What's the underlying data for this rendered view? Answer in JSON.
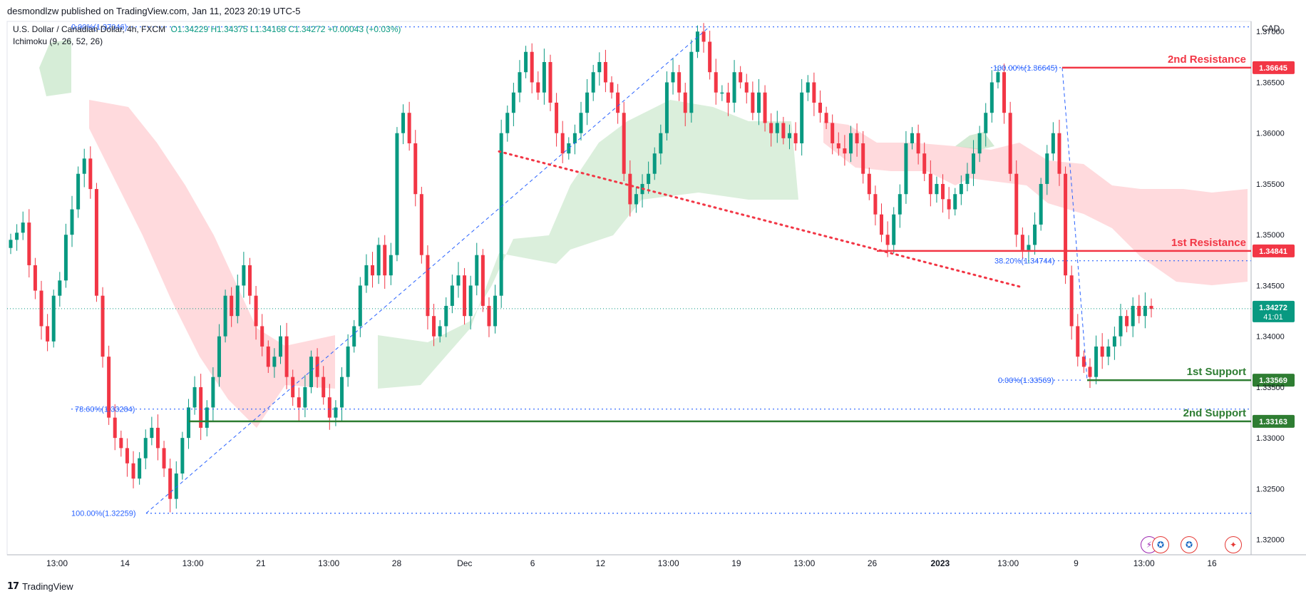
{
  "publisher_line": "desmondlzw published on TradingView.com, Jan 11, 2023 20:19 UTC-5",
  "symbol": {
    "name": "U.S. Dollar / Canadian Dollar, 4h, FXCM",
    "ohlc": "O1.34229  H1.34375  L1.34168  C1.34272  +0.00043 (+0.03%)"
  },
  "indicator": "Ichimoku (9, 26, 52, 26)",
  "currency": "CAD",
  "brand": "TradingView",
  "chart_data": {
    "type": "candlestick",
    "symbol": "USDCAD",
    "timeframe": "4h",
    "ylim": [
      1.3185,
      1.371
    ],
    "y_ticks": [
      "1.37000",
      "1.36500",
      "1.36000",
      "1.35500",
      "1.35000",
      "1.34500",
      "1.34000",
      "1.33500",
      "1.33000",
      "1.32500",
      "1.32000"
    ],
    "x_ticks": [
      "13:00",
      "14",
      "13:00",
      "21",
      "13:00",
      "28",
      "Dec",
      "6",
      "12",
      "13:00",
      "19",
      "13:00",
      "26",
      "2023",
      "13:00",
      "9",
      "13:00",
      "16"
    ],
    "levels": [
      {
        "label": "2nd Resistance",
        "value": 1.36645,
        "price": "1.36645",
        "color": "#f23645"
      },
      {
        "label": "1st Resistance",
        "value": 1.34841,
        "price": "1.34841",
        "color": "#f23645"
      },
      {
        "label": "1st Support",
        "value": 1.33569,
        "price": "1.33569",
        "color": "#2e7d32"
      },
      {
        "label": "2nd Support",
        "value": 1.33163,
        "price": "1.33163",
        "color": "#2e7d32"
      }
    ],
    "last_price": {
      "value": 1.34272,
      "price": "1.34272",
      "countdown": "41:01"
    },
    "fib_labels": [
      {
        "text": "0.00%(1.37046)",
        "value": 1.37046
      },
      {
        "text": "78.60%(1.33284)",
        "value": 1.33284
      },
      {
        "text": "100.00%(1.32259)",
        "value": 1.32259
      },
      {
        "text": "100.00%(1.36645)",
        "value": 1.36645
      },
      {
        "text": "38.20%(1.34744)",
        "value": 1.34744
      },
      {
        "text": "0.00%(1.33569)",
        "value": 1.33569
      }
    ],
    "trendline": {
      "from": 1.3582,
      "to": 1.3449,
      "style": "dotted",
      "color": "#f23645"
    },
    "candles": [
      1.3495,
      1.3502,
      1.3512,
      1.347,
      1.3445,
      1.341,
      1.3395,
      1.344,
      1.3455,
      1.35,
      1.3525,
      1.356,
      1.3575,
      1.3545,
      1.344,
      1.338,
      1.332,
      1.33,
      1.329,
      1.3275,
      1.326,
      1.328,
      1.33,
      1.331,
      1.329,
      1.327,
      1.324,
      1.3265,
      1.33,
      1.333,
      1.335,
      1.331,
      1.333,
      1.336,
      1.34,
      1.344,
      1.342,
      1.345,
      1.347,
      1.344,
      1.341,
      1.339,
      1.337,
      1.338,
      1.34,
      1.336,
      1.334,
      1.333,
      1.335,
      1.338,
      1.336,
      1.334,
      1.332,
      1.333,
      1.336,
      1.339,
      1.341,
      1.345,
      1.347,
      1.346,
      1.349,
      1.346,
      1.348,
      1.36,
      1.362,
      1.359,
      1.354,
      1.348,
      1.342,
      1.34,
      1.341,
      1.343,
      1.345,
      1.346,
      1.342,
      1.345,
      1.348,
      1.343,
      1.341,
      1.344,
      1.36,
      1.362,
      1.364,
      1.366,
      1.368,
      1.365,
      1.364,
      1.367,
      1.363,
      1.36,
      1.358,
      1.359,
      1.36,
      1.362,
      1.364,
      1.366,
      1.367,
      1.365,
      1.364,
      1.362,
      1.356,
      1.353,
      1.354,
      1.355,
      1.356,
      1.358,
      1.36,
      1.365,
      1.366,
      1.364,
      1.362,
      1.368,
      1.37,
      1.369,
      1.366,
      1.364,
      1.364,
      1.363,
      1.366,
      1.365,
      1.364,
      1.362,
      1.364,
      1.361,
      1.36,
      1.361,
      1.3595,
      1.36,
      1.359,
      1.364,
      1.365,
      1.363,
      1.362,
      1.361,
      1.359,
      1.3585,
      1.358,
      1.36,
      1.359,
      1.356,
      1.354,
      1.352,
      1.35,
      1.349,
      1.352,
      1.354,
      1.359,
      1.36,
      1.358,
      1.356,
      1.354,
      1.355,
      1.3535,
      1.3525,
      1.354,
      1.355,
      1.356,
      1.358,
      1.36,
      1.362,
      1.365,
      1.366,
      1.362,
      1.356,
      1.35,
      1.3485,
      1.349,
      1.351,
      1.355,
      1.358,
      1.36,
      1.356,
      1.346,
      1.341,
      1.338,
      1.337,
      1.336,
      1.339,
      1.338,
      1.339,
      1.34,
      1.342,
      1.341,
      1.343,
      1.342,
      1.343,
      1.3427
    ]
  }
}
